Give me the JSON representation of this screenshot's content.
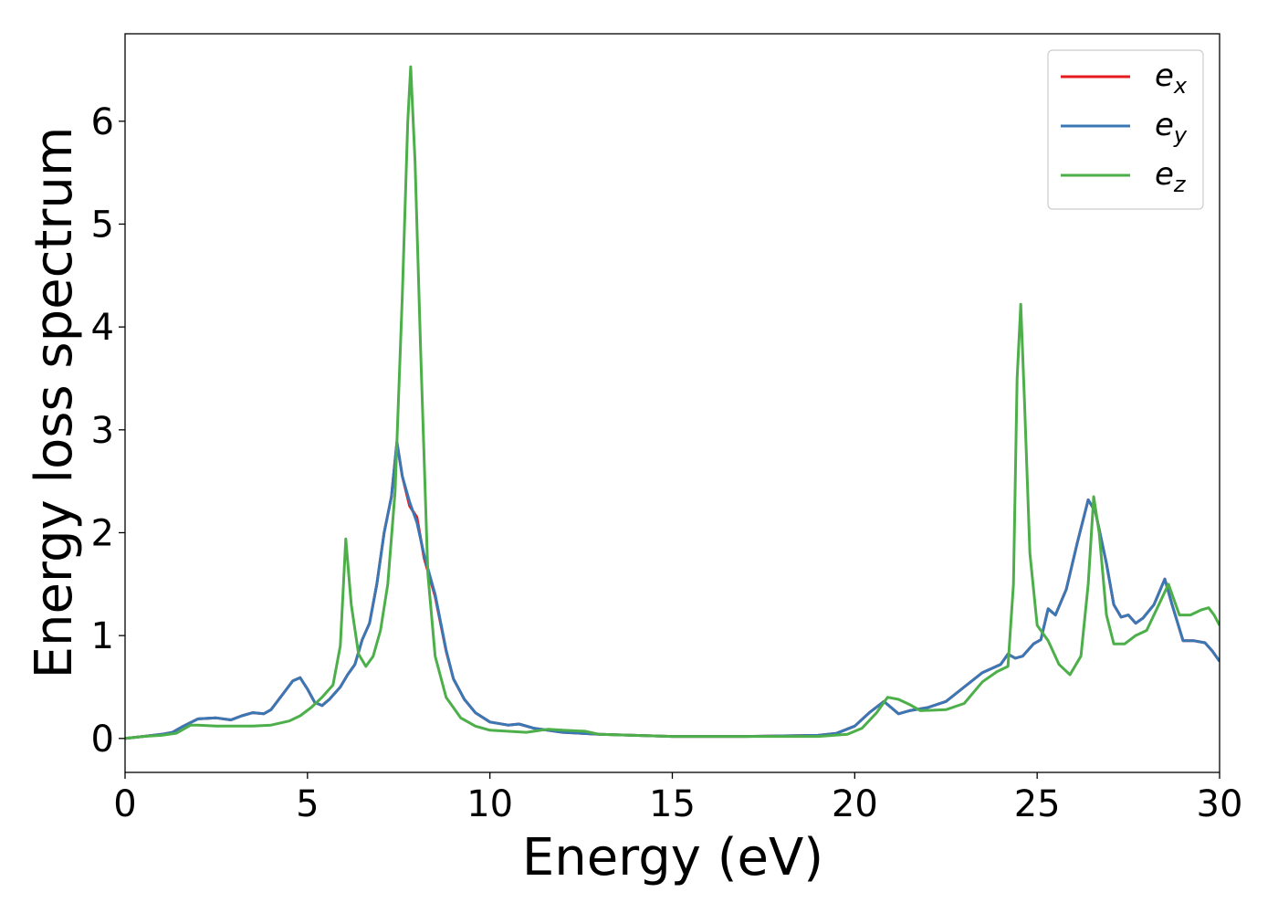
{
  "chart_data": {
    "type": "line",
    "xlabel": "Energy (eV)",
    "ylabel": "Energy loss spectrum",
    "xlim": [
      0,
      30
    ],
    "ylim": [
      -0.33,
      6.85
    ],
    "xticks": [
      0,
      5,
      10,
      15,
      20,
      25,
      30
    ],
    "yticks": [
      0,
      1,
      2,
      3,
      4,
      5,
      6
    ],
    "grid": false,
    "legend_position": "top-right",
    "series": [
      {
        "name": "e_x",
        "legend_base": "e",
        "legend_sub": "x",
        "color": "#e41a1c",
        "points": [
          [
            0,
            0
          ],
          [
            0.5,
            0.02
          ],
          [
            1,
            0.04
          ],
          [
            1.3,
            0.06
          ],
          [
            1.6,
            0.12
          ],
          [
            2,
            0.19
          ],
          [
            2.5,
            0.2
          ],
          [
            2.9,
            0.18
          ],
          [
            3.2,
            0.22
          ],
          [
            3.5,
            0.25
          ],
          [
            3.8,
            0.24
          ],
          [
            4.0,
            0.28
          ],
          [
            4.3,
            0.42
          ],
          [
            4.6,
            0.56
          ],
          [
            4.8,
            0.59
          ],
          [
            5.0,
            0.48
          ],
          [
            5.2,
            0.35
          ],
          [
            5.4,
            0.32
          ],
          [
            5.6,
            0.38
          ],
          [
            5.9,
            0.5
          ],
          [
            6.1,
            0.62
          ],
          [
            6.3,
            0.72
          ],
          [
            6.5,
            0.96
          ],
          [
            6.7,
            1.12
          ],
          [
            6.9,
            1.5
          ],
          [
            7.1,
            2.0
          ],
          [
            7.3,
            2.35
          ],
          [
            7.45,
            2.88
          ],
          [
            7.6,
            2.55
          ],
          [
            7.8,
            2.26
          ],
          [
            8.0,
            2.15
          ],
          [
            8.2,
            1.75
          ],
          [
            8.5,
            1.38
          ],
          [
            8.8,
            0.85
          ],
          [
            9.0,
            0.58
          ],
          [
            9.3,
            0.38
          ],
          [
            9.6,
            0.25
          ],
          [
            10,
            0.16
          ],
          [
            10.5,
            0.13
          ],
          [
            10.8,
            0.14
          ],
          [
            11.2,
            0.1
          ],
          [
            12,
            0.06
          ],
          [
            13,
            0.04
          ],
          [
            15,
            0.02
          ],
          [
            17,
            0.02
          ],
          [
            19,
            0.03
          ],
          [
            19.5,
            0.05
          ],
          [
            20,
            0.12
          ],
          [
            20.4,
            0.25
          ],
          [
            20.8,
            0.36
          ],
          [
            21.0,
            0.3
          ],
          [
            21.2,
            0.24
          ],
          [
            21.5,
            0.27
          ],
          [
            22,
            0.3
          ],
          [
            22.5,
            0.36
          ],
          [
            23,
            0.5
          ],
          [
            23.5,
            0.64
          ],
          [
            24,
            0.72
          ],
          [
            24.2,
            0.82
          ],
          [
            24.4,
            0.78
          ],
          [
            24.6,
            0.8
          ],
          [
            24.9,
            0.92
          ],
          [
            25.1,
            0.96
          ],
          [
            25.3,
            1.26
          ],
          [
            25.5,
            1.2
          ],
          [
            25.8,
            1.45
          ],
          [
            26.1,
            1.9
          ],
          [
            26.4,
            2.32
          ],
          [
            26.6,
            2.2
          ],
          [
            26.9,
            1.7
          ],
          [
            27.1,
            1.3
          ],
          [
            27.3,
            1.18
          ],
          [
            27.5,
            1.2
          ],
          [
            27.7,
            1.12
          ],
          [
            27.9,
            1.17
          ],
          [
            28.2,
            1.3
          ],
          [
            28.5,
            1.55
          ],
          [
            28.7,
            1.3
          ],
          [
            29.0,
            0.95
          ],
          [
            29.3,
            0.95
          ],
          [
            29.6,
            0.93
          ],
          [
            29.8,
            0.85
          ],
          [
            30,
            0.75
          ]
        ]
      },
      {
        "name": "e_y",
        "legend_base": "e",
        "legend_sub": "y",
        "color": "#3a78b5",
        "points": [
          [
            0,
            0
          ],
          [
            0.5,
            0.02
          ],
          [
            1,
            0.04
          ],
          [
            1.3,
            0.06
          ],
          [
            1.6,
            0.12
          ],
          [
            2,
            0.19
          ],
          [
            2.5,
            0.2
          ],
          [
            2.9,
            0.18
          ],
          [
            3.2,
            0.22
          ],
          [
            3.5,
            0.25
          ],
          [
            3.8,
            0.24
          ],
          [
            4.0,
            0.28
          ],
          [
            4.3,
            0.42
          ],
          [
            4.6,
            0.56
          ],
          [
            4.8,
            0.59
          ],
          [
            5.0,
            0.48
          ],
          [
            5.2,
            0.35
          ],
          [
            5.4,
            0.32
          ],
          [
            5.6,
            0.38
          ],
          [
            5.9,
            0.5
          ],
          [
            6.1,
            0.62
          ],
          [
            6.3,
            0.72
          ],
          [
            6.5,
            0.96
          ],
          [
            6.7,
            1.12
          ],
          [
            6.9,
            1.5
          ],
          [
            7.1,
            2.0
          ],
          [
            7.3,
            2.35
          ],
          [
            7.45,
            2.88
          ],
          [
            7.6,
            2.55
          ],
          [
            7.8,
            2.3
          ],
          [
            8.0,
            2.1
          ],
          [
            8.2,
            1.78
          ],
          [
            8.5,
            1.4
          ],
          [
            8.8,
            0.86
          ],
          [
            9.0,
            0.58
          ],
          [
            9.3,
            0.38
          ],
          [
            9.6,
            0.25
          ],
          [
            10,
            0.16
          ],
          [
            10.5,
            0.13
          ],
          [
            10.8,
            0.14
          ],
          [
            11.2,
            0.1
          ],
          [
            12,
            0.06
          ],
          [
            13,
            0.04
          ],
          [
            15,
            0.02
          ],
          [
            17,
            0.02
          ],
          [
            19,
            0.03
          ],
          [
            19.5,
            0.05
          ],
          [
            20,
            0.12
          ],
          [
            20.4,
            0.25
          ],
          [
            20.8,
            0.36
          ],
          [
            21.0,
            0.3
          ],
          [
            21.2,
            0.24
          ],
          [
            21.5,
            0.27
          ],
          [
            22,
            0.3
          ],
          [
            22.5,
            0.36
          ],
          [
            23,
            0.5
          ],
          [
            23.5,
            0.64
          ],
          [
            24,
            0.72
          ],
          [
            24.2,
            0.82
          ],
          [
            24.4,
            0.78
          ],
          [
            24.6,
            0.8
          ],
          [
            24.9,
            0.92
          ],
          [
            25.1,
            0.96
          ],
          [
            25.3,
            1.26
          ],
          [
            25.5,
            1.2
          ],
          [
            25.8,
            1.45
          ],
          [
            26.1,
            1.9
          ],
          [
            26.4,
            2.32
          ],
          [
            26.6,
            2.2
          ],
          [
            26.9,
            1.7
          ],
          [
            27.1,
            1.3
          ],
          [
            27.3,
            1.18
          ],
          [
            27.5,
            1.2
          ],
          [
            27.7,
            1.12
          ],
          [
            27.9,
            1.17
          ],
          [
            28.2,
            1.3
          ],
          [
            28.5,
            1.55
          ],
          [
            28.7,
            1.3
          ],
          [
            29.0,
            0.95
          ],
          [
            29.3,
            0.95
          ],
          [
            29.6,
            0.93
          ],
          [
            29.8,
            0.85
          ],
          [
            30,
            0.75
          ]
        ]
      },
      {
        "name": "e_z",
        "legend_base": "e",
        "legend_sub": "z",
        "color": "#4daf4a",
        "points": [
          [
            0,
            0
          ],
          [
            0.5,
            0.02
          ],
          [
            1,
            0.03
          ],
          [
            1.4,
            0.05
          ],
          [
            1.8,
            0.13
          ],
          [
            2,
            0.13
          ],
          [
            2.5,
            0.12
          ],
          [
            3,
            0.12
          ],
          [
            3.5,
            0.12
          ],
          [
            4,
            0.13
          ],
          [
            4.5,
            0.17
          ],
          [
            4.8,
            0.22
          ],
          [
            5.1,
            0.3
          ],
          [
            5.4,
            0.4
          ],
          [
            5.7,
            0.52
          ],
          [
            5.9,
            0.9
          ],
          [
            6.05,
            1.94
          ],
          [
            6.2,
            1.3
          ],
          [
            6.4,
            0.82
          ],
          [
            6.6,
            0.7
          ],
          [
            6.8,
            0.8
          ],
          [
            7.0,
            1.05
          ],
          [
            7.2,
            1.5
          ],
          [
            7.4,
            2.4
          ],
          [
            7.6,
            4.3
          ],
          [
            7.75,
            6.0
          ],
          [
            7.83,
            6.53
          ],
          [
            7.95,
            5.6
          ],
          [
            8.1,
            3.8
          ],
          [
            8.3,
            1.6
          ],
          [
            8.5,
            0.8
          ],
          [
            8.8,
            0.4
          ],
          [
            9.2,
            0.2
          ],
          [
            9.6,
            0.12
          ],
          [
            10,
            0.08
          ],
          [
            11,
            0.06
          ],
          [
            11.6,
            0.09
          ],
          [
            12,
            0.08
          ],
          [
            12.6,
            0.07
          ],
          [
            13,
            0.04
          ],
          [
            15,
            0.02
          ],
          [
            17,
            0.02
          ],
          [
            19,
            0.02
          ],
          [
            19.8,
            0.04
          ],
          [
            20.2,
            0.1
          ],
          [
            20.6,
            0.25
          ],
          [
            20.9,
            0.4
          ],
          [
            21.2,
            0.38
          ],
          [
            21.5,
            0.33
          ],
          [
            21.8,
            0.27
          ],
          [
            22.5,
            0.28
          ],
          [
            23,
            0.34
          ],
          [
            23.5,
            0.55
          ],
          [
            23.9,
            0.65
          ],
          [
            24.2,
            0.7
          ],
          [
            24.35,
            1.5
          ],
          [
            24.45,
            3.5
          ],
          [
            24.55,
            4.22
          ],
          [
            24.65,
            3.3
          ],
          [
            24.8,
            1.8
          ],
          [
            25.0,
            1.1
          ],
          [
            25.3,
            0.95
          ],
          [
            25.6,
            0.72
          ],
          [
            25.9,
            0.62
          ],
          [
            26.2,
            0.8
          ],
          [
            26.4,
            1.5
          ],
          [
            26.55,
            2.35
          ],
          [
            26.7,
            2.0
          ],
          [
            26.9,
            1.2
          ],
          [
            27.1,
            0.92
          ],
          [
            27.4,
            0.92
          ],
          [
            27.7,
            1.0
          ],
          [
            28.0,
            1.05
          ],
          [
            28.4,
            1.35
          ],
          [
            28.6,
            1.5
          ],
          [
            28.9,
            1.2
          ],
          [
            29.2,
            1.2
          ],
          [
            29.5,
            1.25
          ],
          [
            29.7,
            1.27
          ],
          [
            29.85,
            1.2
          ],
          [
            30,
            1.1
          ]
        ]
      }
    ]
  }
}
